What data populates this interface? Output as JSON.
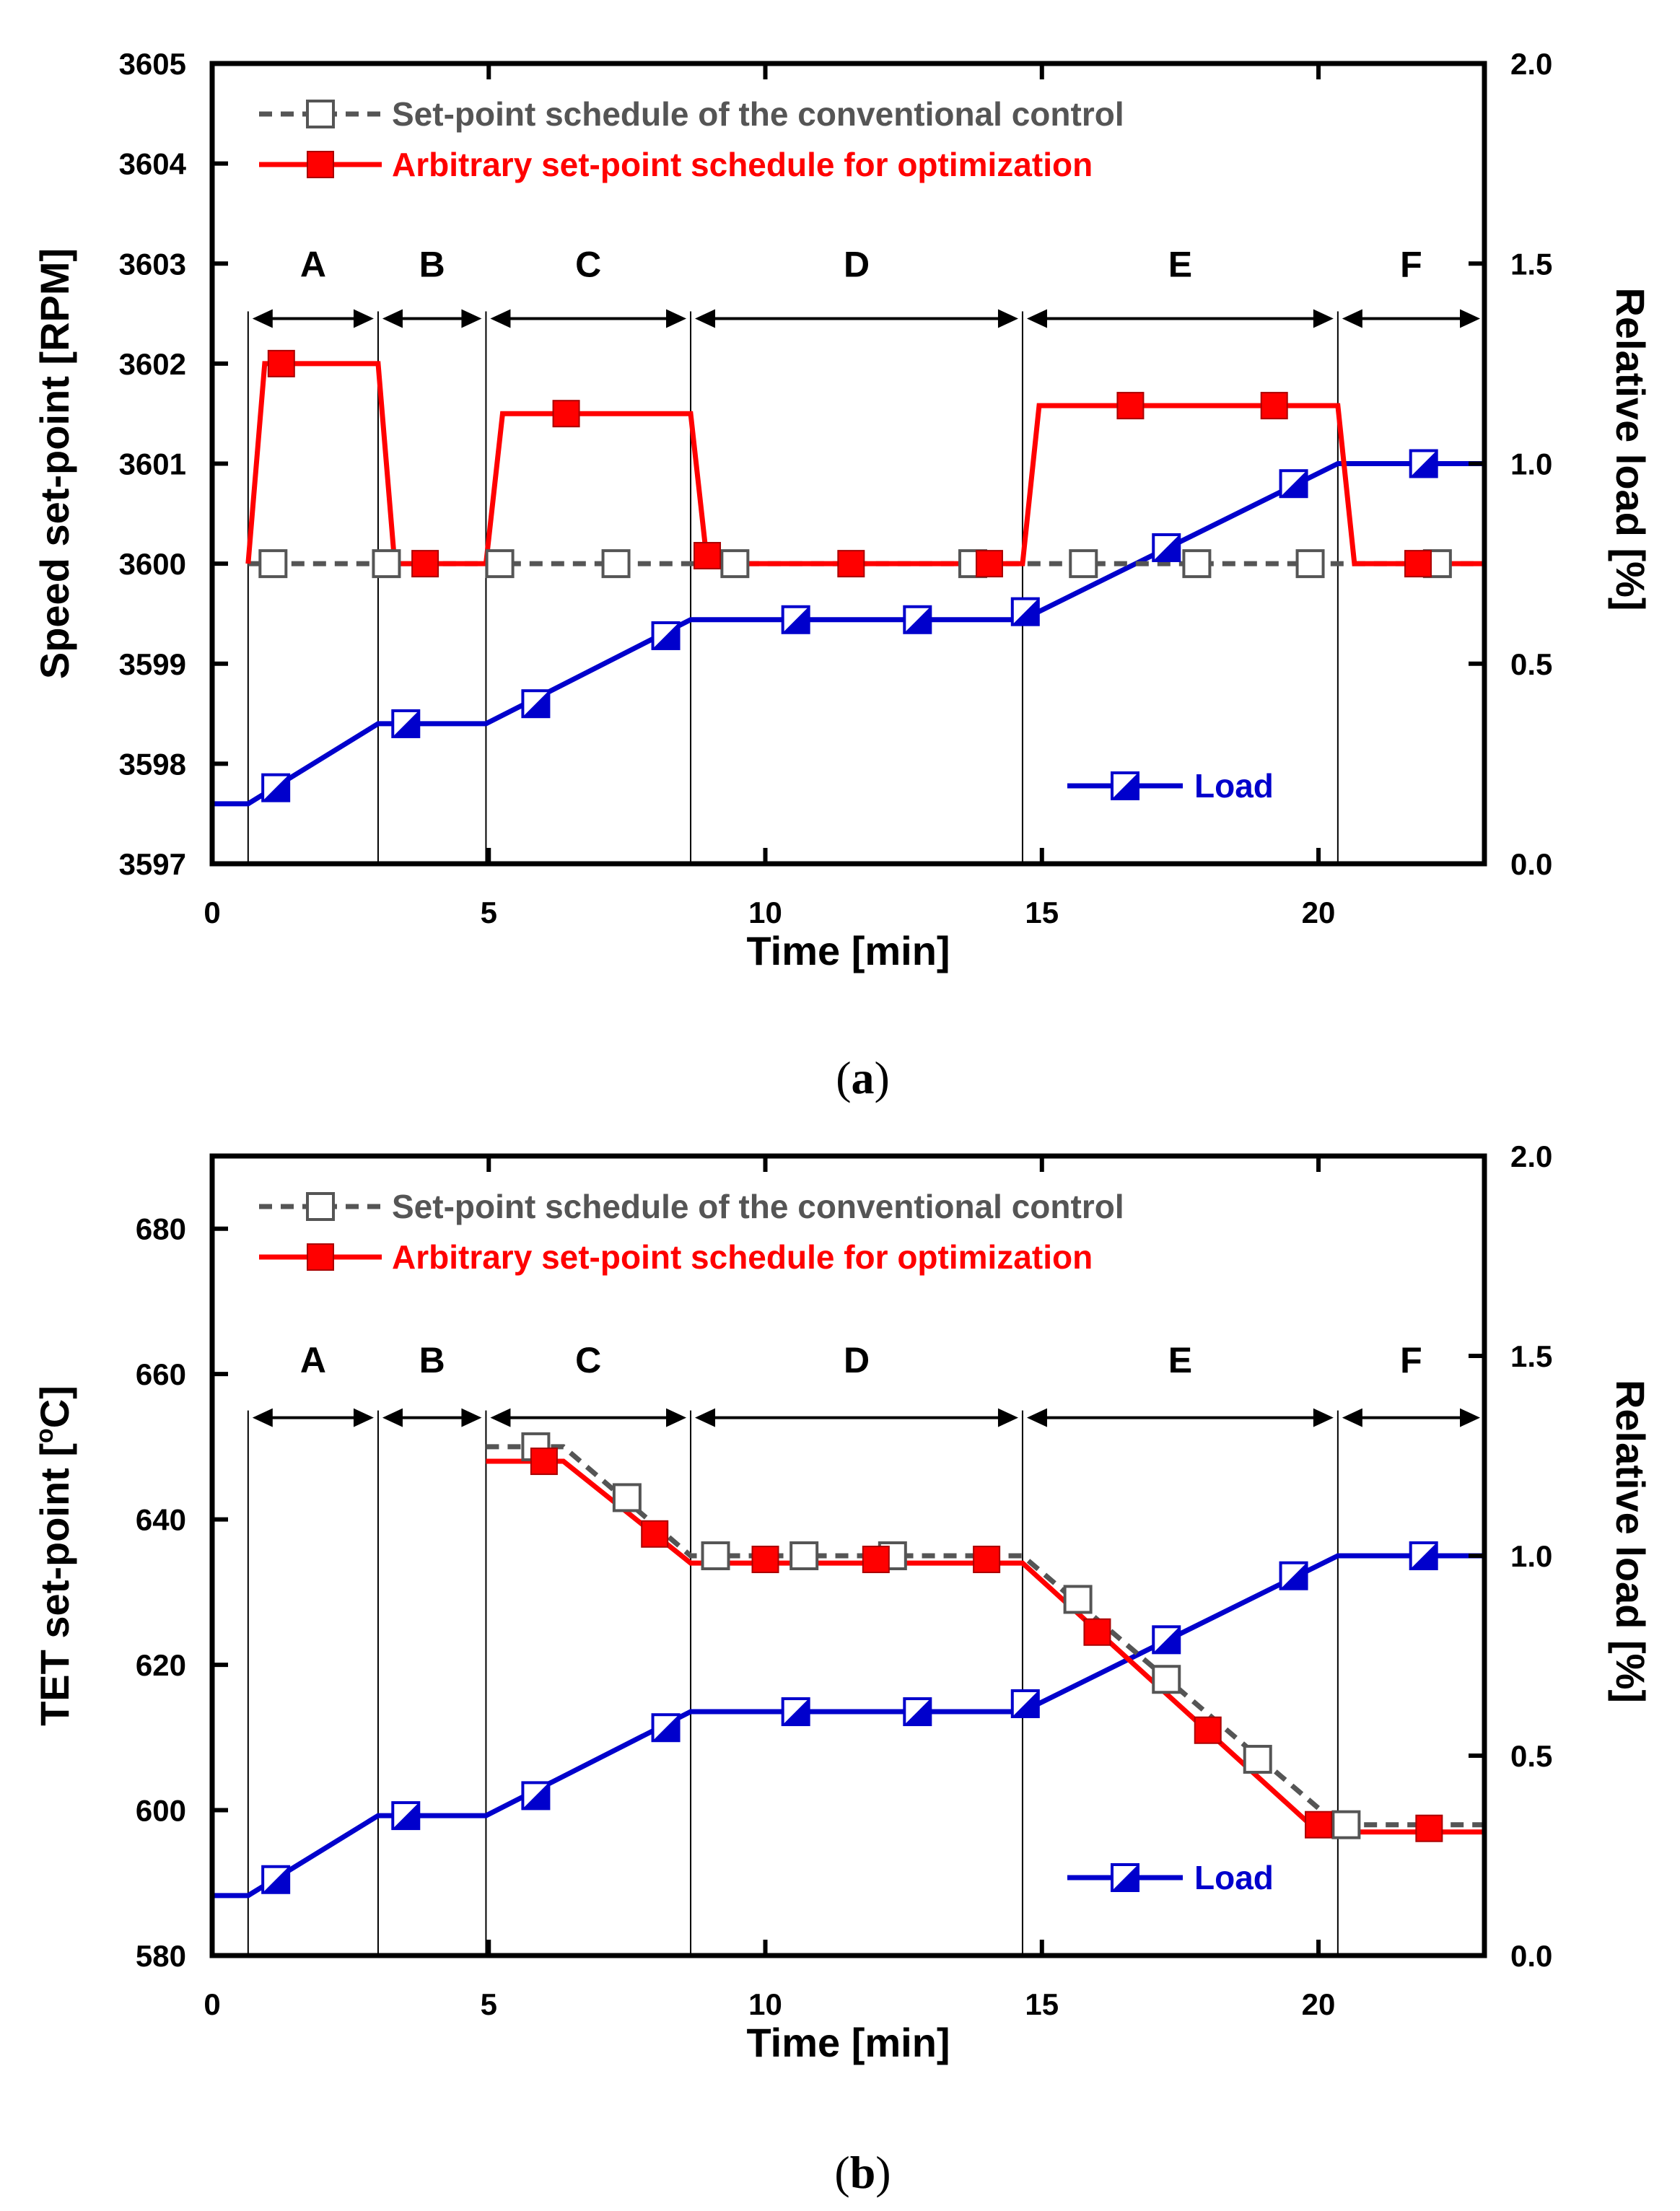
{
  "colors": {
    "conventional": "#555555",
    "arbitrary": "#ff0000",
    "load": "#0000cc",
    "axis": "#000000"
  },
  "chart_data": [
    {
      "panel_label": "(a)",
      "caption_parts": [
        "(",
        "a",
        ")"
      ],
      "type": "line",
      "xlabel": "Time [min]",
      "ylabel": "Speed set-point [RPM]",
      "y2label": "Relative load [%]",
      "xlim": [
        0,
        23
      ],
      "ylim": [
        3597,
        3605
      ],
      "y2lim": [
        0,
        2
      ],
      "xticks": [
        0,
        5,
        10,
        15,
        20
      ],
      "xtick_labels": [
        "0",
        "5",
        "10",
        "15",
        "20"
      ],
      "yticks": [
        3597,
        3598,
        3599,
        3600,
        3601,
        3602,
        3603,
        3604,
        3605
      ],
      "ytick_labels": [
        "3597",
        "3598",
        "3599",
        "3600",
        "3601",
        "3602",
        "3603",
        "3604",
        "3605"
      ],
      "y2ticks": [
        0,
        0.5,
        1,
        1.5,
        2
      ],
      "y2tick_labels": [
        "0.0",
        "0.5",
        "1.0",
        "1.5",
        "2.0"
      ],
      "phase_boundaries": [
        0.65,
        3.0,
        4.95,
        8.65,
        14.65,
        20.35,
        23
      ],
      "phase_labels": [
        "A",
        "B",
        "C",
        "D",
        "E",
        "F"
      ],
      "phase_label_y": 3603,
      "phase_arrow_y": 3602.45,
      "legend": {
        "conventional": "Set-point schedule of the conventional control",
        "arbitrary": "Arbitrary set-point schedule for optimization",
        "load": "Load"
      },
      "series": [
        {
          "name": "Set-point schedule of the conventional control",
          "axis": "left",
          "style": "conventional",
          "x": [
            0.65,
            23.0
          ],
          "y": [
            3600,
            3600
          ],
          "marker_x": [
            1.1,
            3.15,
            5.2,
            7.3,
            9.45,
            13.75,
            15.75,
            17.8,
            19.85,
            22.15
          ],
          "marker_y": [
            3600,
            3600,
            3600,
            3600,
            3600,
            3600,
            3600,
            3600,
            3600,
            3600
          ]
        },
        {
          "name": "Arbitrary set-point schedule for optimization",
          "axis": "left",
          "style": "arbitrary",
          "x": [
            0.65,
            0.95,
            3.0,
            3.3,
            4.95,
            5.25,
            8.65,
            8.95,
            14.65,
            14.95,
            20.35,
            20.65,
            23.0
          ],
          "y": [
            3600,
            3602,
            3602,
            3600,
            3600,
            3601.5,
            3601.5,
            3600,
            3600,
            3601.58,
            3601.58,
            3600,
            3600
          ],
          "marker_x": [
            1.25,
            3.85,
            6.4,
            8.95,
            11.55,
            14.05,
            16.6,
            19.2,
            21.8
          ],
          "marker_y": [
            3602,
            3600,
            3601.5,
            3600.08,
            3600,
            3600,
            3601.58,
            3601.58,
            3600
          ]
        },
        {
          "name": "Load",
          "axis": "right",
          "style": "load",
          "x": [
            0.0,
            0.65,
            3.0,
            4.95,
            8.65,
            14.65,
            20.35,
            23.0
          ],
          "y": [
            0.15,
            0.15,
            0.35,
            0.35,
            0.61,
            0.61,
            1.0,
            1.0
          ],
          "marker_x": [
            1.15,
            3.5,
            5.85,
            8.2,
            10.55,
            12.75,
            14.7,
            17.25,
            19.55,
            21.9
          ],
          "marker_y": [
            0.19,
            0.35,
            0.4,
            0.57,
            0.61,
            0.61,
            0.63,
            0.79,
            0.95,
            1.0
          ]
        }
      ]
    },
    {
      "panel_label": "(b)",
      "caption_parts": [
        "(",
        "b",
        ")"
      ],
      "type": "line",
      "xlabel": "Time [min]",
      "ylabel": "TET set-point [",
      "ylabel_sup": "o",
      "ylabel_end": "C]",
      "y2label": "Relative load [%]",
      "xlim": [
        0,
        23
      ],
      "ylim": [
        580,
        690
      ],
      "y2lim": [
        0,
        2
      ],
      "xticks": [
        0,
        5,
        10,
        15,
        20
      ],
      "xtick_labels": [
        "0",
        "5",
        "10",
        "15",
        "20"
      ],
      "yticks": [
        580,
        600,
        620,
        640,
        660,
        680
      ],
      "ytick_labels": [
        "580",
        "600",
        "620",
        "640",
        "660",
        "680"
      ],
      "y2ticks": [
        0,
        0.5,
        1,
        1.5,
        2
      ],
      "y2tick_labels": [
        "0.0",
        "0.5",
        "1.0",
        "1.5",
        "2.0"
      ],
      "phase_boundaries": [
        0.65,
        3.0,
        4.95,
        8.65,
        14.65,
        20.35,
        23
      ],
      "phase_labels": [
        "A",
        "B",
        "C",
        "D",
        "E",
        "F"
      ],
      "phase_label_y": 662,
      "phase_arrow_y": 654,
      "legend": {
        "conventional": "Set-point schedule of the conventional control",
        "arbitrary": "Arbitrary set-point schedule for optimization",
        "load": "Load"
      },
      "series": [
        {
          "name": "Set-point schedule of the conventional control",
          "axis": "left",
          "style": "conventional",
          "x": [
            4.95,
            6.35,
            8.65,
            14.65,
            20.35,
            23.0
          ],
          "y": [
            650,
            650,
            635,
            635,
            598,
            598
          ],
          "marker_x": [
            5.85,
            7.5,
            9.1,
            10.7,
            12.3,
            15.65,
            17.25,
            18.9,
            20.5
          ],
          "marker_y": [
            650,
            643,
            635,
            635,
            635,
            629,
            618,
            607,
            598
          ]
        },
        {
          "name": "Arbitrary set-point schedule for optimization",
          "axis": "left",
          "style": "arbitrary",
          "x": [
            4.95,
            6.35,
            8.65,
            14.65,
            20.0,
            23.0
          ],
          "y": [
            648,
            648,
            634,
            634,
            597,
            597
          ],
          "marker_x": [
            6.0,
            8.0,
            10.0,
            12.0,
            14.0,
            16.0,
            18.0,
            20.0,
            22.0
          ],
          "marker_y": [
            648,
            638,
            634.5,
            634.5,
            634.5,
            624.5,
            611,
            598,
            597.5
          ]
        },
        {
          "name": "Load",
          "axis": "right",
          "style": "load",
          "x": [
            0.0,
            0.65,
            3.0,
            4.95,
            8.65,
            14.65,
            20.35,
            23.0
          ],
          "y": [
            0.15,
            0.15,
            0.35,
            0.35,
            0.61,
            0.61,
            1.0,
            1.0
          ],
          "marker_x": [
            1.15,
            3.5,
            5.85,
            8.2,
            10.55,
            12.75,
            14.7,
            17.25,
            19.55,
            21.9
          ],
          "marker_y": [
            0.19,
            0.35,
            0.4,
            0.57,
            0.61,
            0.61,
            0.63,
            0.79,
            0.95,
            1.0
          ]
        }
      ]
    }
  ]
}
